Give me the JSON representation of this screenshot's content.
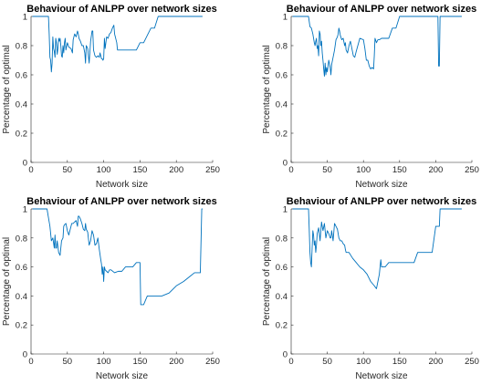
{
  "chart_data": [
    {
      "type": "line",
      "title": "Behaviour of ANLPP over network sizes",
      "xlabel": "Network size",
      "ylabel": "Percentage of optimal",
      "xlim": [
        0,
        250
      ],
      "ylim": [
        0,
        1
      ],
      "xticks": [
        "0",
        "50",
        "100",
        "150",
        "200",
        "250"
      ],
      "yticks": [
        "0",
        "0.2",
        "0.4",
        "0.6",
        "0.8",
        "1"
      ],
      "grid": false,
      "color": "#0072BD",
      "x": [
        2,
        24,
        25,
        26,
        27,
        28,
        29,
        30,
        31,
        32,
        33,
        34,
        35,
        36,
        37,
        38,
        39,
        40,
        41,
        42,
        43,
        44,
        45,
        46,
        47,
        48,
        50,
        52,
        55,
        57,
        58,
        60,
        62,
        64,
        65,
        66,
        68,
        70,
        72,
        74,
        75,
        76,
        78,
        80,
        82,
        84,
        85,
        86,
        88,
        90,
        92,
        94,
        95,
        96,
        97,
        98,
        99,
        100,
        101,
        102,
        104,
        106,
        108,
        110,
        112,
        114,
        115,
        116,
        118,
        119,
        120,
        125,
        130,
        135,
        140,
        145,
        150,
        155,
        160,
        165,
        170,
        175,
        180,
        185,
        190,
        200,
        210,
        220,
        230,
        236
      ],
      "y": [
        1,
        1,
        0.88,
        0.72,
        0.7,
        0.62,
        0.68,
        0.86,
        0.78,
        0.76,
        0.72,
        0.85,
        0.82,
        0.74,
        0.78,
        0.85,
        0.83,
        0.85,
        0.8,
        0.73,
        0.72,
        0.8,
        0.75,
        0.82,
        0.85,
        0.77,
        0.82,
        0.79,
        0.78,
        0.75,
        0.84,
        0.88,
        0.86,
        0.9,
        0.88,
        0.85,
        0.83,
        0.8,
        0.8,
        0.75,
        0.68,
        0.8,
        0.78,
        0.68,
        0.83,
        0.9,
        0.9,
        0.77,
        0.73,
        0.72,
        0.73,
        0.72,
        0.75,
        0.73,
        0.71,
        0.71,
        0.7,
        0.71,
        0.85,
        0.78,
        0.86,
        0.85,
        0.88,
        0.89,
        0.92,
        0.94,
        0.88,
        0.86,
        0.82,
        0.77,
        0.77,
        0.77,
        0.77,
        0.77,
        0.77,
        0.77,
        0.82,
        0.82,
        0.87,
        0.92,
        0.92,
        1,
        1,
        1,
        1,
        1,
        1,
        1,
        1,
        1
      ]
    },
    {
      "type": "line",
      "title": "Behaviour of ANLPP over network sizes",
      "xlabel": "Network size",
      "ylabel": "Percentage of optimal",
      "xlim": [
        0,
        250
      ],
      "ylim": [
        0,
        1
      ],
      "xticks": [
        "0",
        "50",
        "100",
        "150",
        "200",
        "250"
      ],
      "yticks": [
        "0",
        "0.2",
        "0.4",
        "0.6",
        "0.8",
        "1"
      ],
      "grid": false,
      "color": "#0072BD",
      "x": [
        2,
        24,
        26,
        28,
        30,
        32,
        33,
        34,
        35,
        36,
        37,
        38,
        39,
        40,
        41,
        42,
        43,
        44,
        45,
        46,
        47,
        48,
        49,
        50,
        52,
        54,
        55,
        56,
        58,
        60,
        62,
        64,
        65,
        66,
        67,
        68,
        70,
        72,
        74,
        75,
        76,
        78,
        80,
        82,
        84,
        86,
        88,
        90,
        95,
        100,
        102,
        104,
        106,
        108,
        110,
        112,
        114,
        115,
        116,
        118,
        120,
        122,
        125,
        130,
        135,
        140,
        145,
        150,
        160,
        170,
        180,
        190,
        200,
        203,
        204,
        205,
        206,
        207,
        210,
        220,
        230,
        236
      ],
      "y": [
        1,
        1,
        0.93,
        0.92,
        0.88,
        0.82,
        0.8,
        0.83,
        0.85,
        0.78,
        0.8,
        0.73,
        0.9,
        0.88,
        0.8,
        0.83,
        0.75,
        0.7,
        0.64,
        0.59,
        0.68,
        0.6,
        0.65,
        0.62,
        0.7,
        0.65,
        0.6,
        0.67,
        0.72,
        0.77,
        0.84,
        0.86,
        0.88,
        0.92,
        0.9,
        0.87,
        0.84,
        0.85,
        0.8,
        0.82,
        0.77,
        0.75,
        0.8,
        0.83,
        0.78,
        0.73,
        0.72,
        0.76,
        0.85,
        0.84,
        0.78,
        0.7,
        0.7,
        0.66,
        0.64,
        0.65,
        0.64,
        0.73,
        0.85,
        0.82,
        0.84,
        0.84,
        0.85,
        0.85,
        0.85,
        0.92,
        0.92,
        1,
        1,
        1,
        1,
        1,
        1,
        1,
        0.66,
        0.66,
        1,
        1,
        1,
        1,
        1,
        1
      ]
    },
    {
      "type": "line",
      "title": "Behaviour of ANLPP over network sizes",
      "xlabel": "Network size",
      "ylabel": "Percentage of optimal",
      "xlim": [
        0,
        250
      ],
      "ylim": [
        0,
        1
      ],
      "xticks": [
        "0",
        "50",
        "100",
        "150",
        "200",
        "250"
      ],
      "yticks": [
        "0",
        "0.2",
        "0.4",
        "0.6",
        "0.8",
        "1"
      ],
      "grid": false,
      "color": "#0072BD",
      "x": [
        2,
        22,
        24,
        26,
        28,
        30,
        32,
        33,
        34,
        35,
        36,
        38,
        40,
        42,
        44,
        45,
        46,
        48,
        50,
        52,
        54,
        55,
        56,
        58,
        60,
        62,
        64,
        65,
        66,
        68,
        70,
        72,
        74,
        75,
        76,
        78,
        80,
        82,
        84,
        86,
        88,
        90,
        92,
        94,
        96,
        97,
        98,
        99,
        100,
        101,
        102,
        104,
        106,
        108,
        110,
        115,
        120,
        125,
        130,
        135,
        140,
        145,
        150,
        151,
        155,
        160,
        170,
        180,
        190,
        200,
        210,
        220,
        225,
        230,
        233,
        235,
        236
      ],
      "y": [
        1,
        1,
        0.94,
        0.88,
        0.78,
        0.8,
        0.73,
        0.82,
        0.73,
        0.73,
        0.78,
        0.7,
        0.68,
        0.78,
        0.8,
        0.88,
        0.89,
        0.9,
        0.85,
        0.82,
        0.86,
        0.88,
        0.9,
        0.9,
        0.91,
        0.92,
        0.88,
        0.95,
        0.95,
        0.93,
        0.9,
        0.86,
        0.85,
        0.9,
        0.86,
        0.84,
        0.75,
        0.78,
        0.85,
        0.82,
        0.75,
        0.76,
        0.8,
        0.72,
        0.65,
        0.62,
        0.55,
        0.6,
        0.5,
        0.6,
        0.58,
        0.57,
        0.56,
        0.58,
        0.58,
        0.56,
        0.57,
        0.57,
        0.6,
        0.6,
        0.6,
        0.63,
        0.63,
        0.34,
        0.34,
        0.4,
        0.4,
        0.4,
        0.42,
        0.47,
        0.5,
        0.54,
        0.56,
        0.56,
        0.56,
        1,
        1
      ]
    },
    {
      "type": "line",
      "title": "Behaviour of ANLPP over network sizes",
      "xlabel": "Network size",
      "ylabel": "Percentage of optimal",
      "xlim": [
        0,
        250
      ],
      "ylim": [
        0,
        1
      ],
      "xticks": [
        "0",
        "50",
        "100",
        "150",
        "200",
        "250"
      ],
      "yticks": [
        "0",
        "0.2",
        "0.4",
        "0.6",
        "0.8",
        "1"
      ],
      "grid": false,
      "color": "#0072BD",
      "x": [
        2,
        24,
        25,
        26,
        27,
        28,
        29,
        30,
        31,
        32,
        33,
        34,
        35,
        36,
        38,
        40,
        42,
        44,
        46,
        48,
        50,
        52,
        54,
        55,
        56,
        58,
        60,
        62,
        64,
        66,
        68,
        70,
        72,
        74,
        75,
        76,
        78,
        80,
        85,
        90,
        95,
        100,
        105,
        110,
        115,
        118,
        120,
        122,
        124,
        125,
        126,
        130,
        135,
        140,
        150,
        160,
        170,
        175,
        180,
        190,
        195,
        200,
        205,
        206,
        210,
        220,
        230,
        236
      ],
      "y": [
        1,
        1,
        0.86,
        0.7,
        0.63,
        0.6,
        0.73,
        0.85,
        0.82,
        0.75,
        0.78,
        0.7,
        0.75,
        0.83,
        0.87,
        0.78,
        0.91,
        0.85,
        0.9,
        0.8,
        0.85,
        0.83,
        0.8,
        0.8,
        0.85,
        0.78,
        0.9,
        0.88,
        0.86,
        0.8,
        0.78,
        0.78,
        0.76,
        0.75,
        0.72,
        0.7,
        0.7,
        0.7,
        0.66,
        0.63,
        0.6,
        0.58,
        0.55,
        0.5,
        0.47,
        0.45,
        0.5,
        0.55,
        0.65,
        0.6,
        0.6,
        0.6,
        0.63,
        0.63,
        0.63,
        0.63,
        0.63,
        0.7,
        0.7,
        0.7,
        0.7,
        0.88,
        0.88,
        1,
        1,
        1,
        1,
        1
      ]
    }
  ]
}
